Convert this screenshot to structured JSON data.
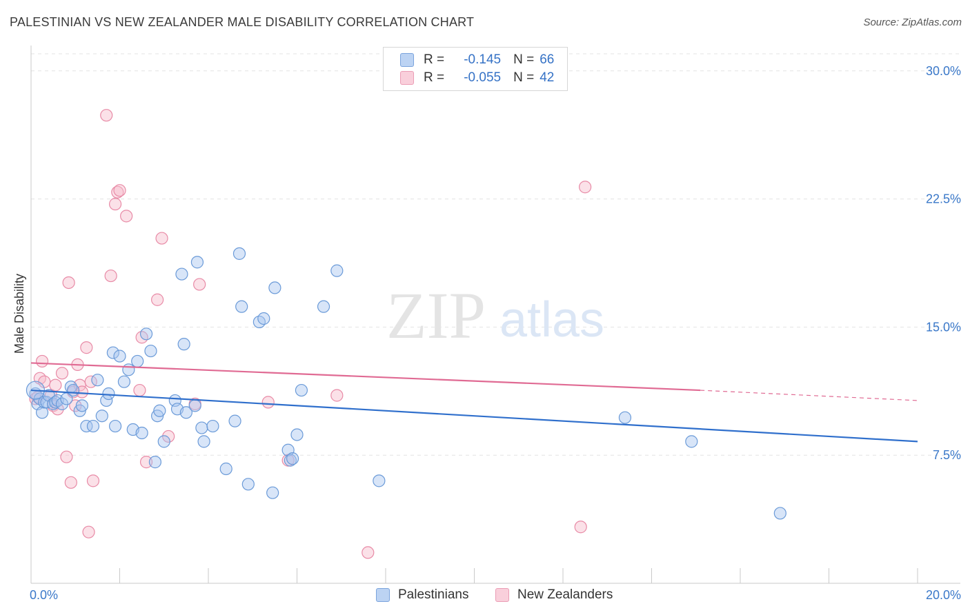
{
  "title": "PALESTINIAN VS NEW ZEALANDER MALE DISABILITY CORRELATION CHART",
  "source": "Source: ZipAtlas.com",
  "watermark": {
    "zip": "ZIP",
    "atlas": "atlas"
  },
  "legend": {
    "rows": [
      {
        "r_label": "R =",
        "r_value": "-0.145",
        "n_label": "N =",
        "n_value": "66"
      },
      {
        "r_label": "R =",
        "r_value": "-0.055",
        "n_label": "N =",
        "n_value": "42"
      }
    ]
  },
  "bottom_legend": {
    "series1": "Palestinians",
    "series2": "New Zealanders"
  },
  "colors": {
    "blue_fill": "#a9c6ef",
    "blue_stroke": "#6a9ad8",
    "blue_line": "#2f6fcc",
    "pink_fill": "#f6bccd",
    "pink_stroke": "#e88aa6",
    "pink_line": "#e06a93",
    "tick_label": "#3a78c9",
    "grid": "#e3e3e3"
  },
  "chart_data": {
    "type": "scatter",
    "title": "PALESTINIAN VS NEW ZEALANDER MALE DISABILITY CORRELATION CHART",
    "xlabel": "",
    "ylabel": "Male Disability",
    "xlim": [
      0,
      20
    ],
    "ylim": [
      0,
      31
    ],
    "x_tick_labels": [
      {
        "value": 0,
        "label": "0.0%"
      },
      {
        "value": 20,
        "label": "20.0%"
      }
    ],
    "y_tick_labels": [
      {
        "value": 7.5,
        "label": "7.5%"
      },
      {
        "value": 15,
        "label": "15.0%"
      },
      {
        "value": 22.5,
        "label": "22.5%"
      },
      {
        "value": 30,
        "label": "30.0%"
      }
    ],
    "series": [
      {
        "name": "Palestinians",
        "color": "blue",
        "trend": {
          "x0": 0,
          "y0": 11.3,
          "x1": 20,
          "y1": 8.3
        },
        "points": [
          [
            0.1,
            11.1
          ],
          [
            0.15,
            10.5
          ],
          [
            0.2,
            10.8
          ],
          [
            0.25,
            10.0
          ],
          [
            0.3,
            10.6
          ],
          [
            0.35,
            10.6
          ],
          [
            0.4,
            11.0
          ],
          [
            0.5,
            10.5
          ],
          [
            0.55,
            10.6
          ],
          [
            0.6,
            10.7
          ],
          [
            0.7,
            10.5
          ],
          [
            0.8,
            10.8
          ],
          [
            0.9,
            11.5
          ],
          [
            0.95,
            11.3
          ],
          [
            1.1,
            10.1
          ],
          [
            1.15,
            10.4
          ],
          [
            1.25,
            9.2
          ],
          [
            1.4,
            9.2
          ],
          [
            1.5,
            11.9
          ],
          [
            1.6,
            9.8
          ],
          [
            1.7,
            10.7
          ],
          [
            1.75,
            11.1
          ],
          [
            1.85,
            13.5
          ],
          [
            1.9,
            9.2
          ],
          [
            2.0,
            13.3
          ],
          [
            2.1,
            11.8
          ],
          [
            2.2,
            12.5
          ],
          [
            2.3,
            9.0
          ],
          [
            2.4,
            13.0
          ],
          [
            2.5,
            8.8
          ],
          [
            2.6,
            14.6
          ],
          [
            2.7,
            13.6
          ],
          [
            2.8,
            7.1
          ],
          [
            2.85,
            9.8
          ],
          [
            2.9,
            10.1
          ],
          [
            3.0,
            8.3
          ],
          [
            3.25,
            10.7
          ],
          [
            3.3,
            10.2
          ],
          [
            3.4,
            18.1
          ],
          [
            3.45,
            14.0
          ],
          [
            3.5,
            10.0
          ],
          [
            3.7,
            10.4
          ],
          [
            3.75,
            18.8
          ],
          [
            3.85,
            9.1
          ],
          [
            3.9,
            8.3
          ],
          [
            4.1,
            9.2
          ],
          [
            4.4,
            6.7
          ],
          [
            4.6,
            9.5
          ],
          [
            4.7,
            19.3
          ],
          [
            4.75,
            16.2
          ],
          [
            4.9,
            5.8
          ],
          [
            5.15,
            15.3
          ],
          [
            5.25,
            15.5
          ],
          [
            5.45,
            5.3
          ],
          [
            5.5,
            17.3
          ],
          [
            5.8,
            7.8
          ],
          [
            5.85,
            7.2
          ],
          [
            5.9,
            7.3
          ],
          [
            6.0,
            8.7
          ],
          [
            6.1,
            11.3
          ],
          [
            6.6,
            16.2
          ],
          [
            6.9,
            18.3
          ],
          [
            7.85,
            6.0
          ],
          [
            13.4,
            9.7
          ],
          [
            14.9,
            8.3
          ],
          [
            16.9,
            4.1
          ]
        ]
      },
      {
        "name": "New Zealanders",
        "color": "pink",
        "trend": {
          "x0": 0,
          "y0": 12.9,
          "x1": 15.1,
          "y1": 11.3,
          "dash_x1": 20,
          "dash_y1": 10.7
        },
        "points": [
          [
            0.1,
            10.8
          ],
          [
            0.15,
            10.9
          ],
          [
            0.2,
            12.0
          ],
          [
            0.25,
            13.0
          ],
          [
            0.3,
            11.8
          ],
          [
            0.45,
            11.0
          ],
          [
            0.5,
            10.4
          ],
          [
            0.55,
            11.6
          ],
          [
            0.6,
            10.2
          ],
          [
            0.7,
            12.3
          ],
          [
            0.8,
            7.4
          ],
          [
            0.85,
            17.6
          ],
          [
            0.9,
            5.9
          ],
          [
            0.95,
            11.2
          ],
          [
            1.0,
            10.4
          ],
          [
            1.05,
            12.8
          ],
          [
            1.1,
            11.6
          ],
          [
            1.15,
            11.2
          ],
          [
            1.25,
            13.8
          ],
          [
            1.3,
            3.0
          ],
          [
            1.35,
            11.8
          ],
          [
            1.4,
            6.0
          ],
          [
            1.7,
            27.4
          ],
          [
            1.8,
            18.0
          ],
          [
            1.9,
            22.2
          ],
          [
            1.95,
            22.9
          ],
          [
            2.0,
            23.0
          ],
          [
            2.15,
            21.5
          ],
          [
            2.45,
            11.3
          ],
          [
            2.5,
            14.4
          ],
          [
            2.6,
            7.1
          ],
          [
            2.85,
            16.6
          ],
          [
            2.95,
            20.2
          ],
          [
            3.1,
            8.6
          ],
          [
            3.7,
            10.5
          ],
          [
            3.8,
            17.5
          ],
          [
            5.35,
            10.6
          ],
          [
            5.8,
            7.2
          ],
          [
            6.9,
            11.0
          ],
          [
            7.6,
            1.8
          ],
          [
            12.4,
            3.3
          ],
          [
            12.5,
            23.2
          ]
        ]
      }
    ]
  }
}
